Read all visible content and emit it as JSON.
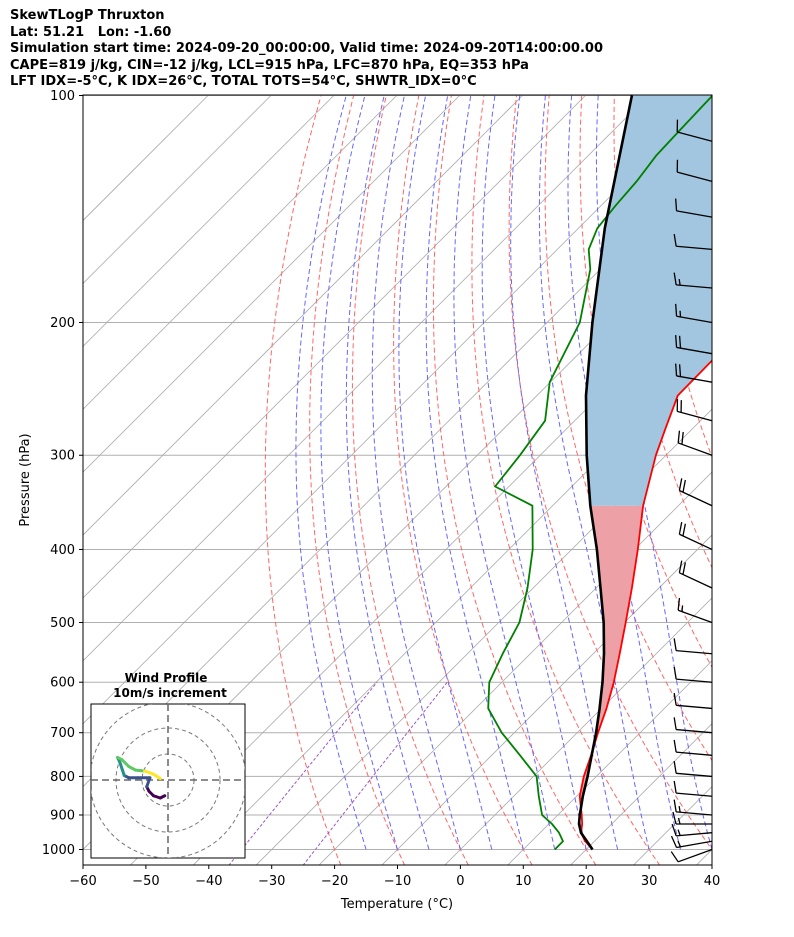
{
  "header": {
    "line1": "SkewTLogP Thruxton",
    "line2": "Lat: 51.21   Lon: -1.60",
    "line3": "Simulation start time: 2024-09-20_00:00:00, Valid time: 2024-09-20T14:00:00.00",
    "line4": "CAPE=819 j/kg, CIN=-12 j/kg, LCL=915 hPa, LFC=870 hPa, EQ=353 hPa",
    "line5": "LFT IDX=-5°C, K IDX=26°C, TOTAL TOTS=54°C, SHWTR_IDX=0°C"
  },
  "chart_data": {
    "type": "skew-t log-p",
    "xlabel": "Temperature (°C)",
    "ylabel": "Pressure (hPa)",
    "xlim": [
      -60,
      40
    ],
    "ylim_hpa": [
      1050,
      100
    ],
    "x_ticks": [
      -60,
      -50,
      -40,
      -30,
      -20,
      -10,
      0,
      10,
      20,
      30,
      40
    ],
    "y_ticks": [
      1000,
      900,
      800,
      700,
      600,
      500,
      400,
      300,
      200,
      100
    ],
    "grid": true,
    "temperature_profile": [
      {
        "p": 1000,
        "t": 21.0
      },
      {
        "p": 975,
        "t": 18.5
      },
      {
        "p": 950,
        "t": 16.5
      },
      {
        "p": 925,
        "t": 15.3
      },
      {
        "p": 900,
        "t": 13.8
      },
      {
        "p": 850,
        "t": 10.5
      },
      {
        "p": 800,
        "t": 8.0
      },
      {
        "p": 750,
        "t": 5.8
      },
      {
        "p": 700,
        "t": 3.3
      },
      {
        "p": 650,
        "t": 0.8
      },
      {
        "p": 600,
        "t": -2.2
      },
      {
        "p": 550,
        "t": -5.8
      },
      {
        "p": 500,
        "t": -9.8
      },
      {
        "p": 450,
        "t": -14.3
      },
      {
        "p": 400,
        "t": -19.5
      },
      {
        "p": 350,
        "t": -25.6
      },
      {
        "p": 300,
        "t": -31.6
      },
      {
        "p": 275,
        "t": -34.5
      },
      {
        "p": 250,
        "t": -37.6
      },
      {
        "p": 230,
        "t": -37.7
      },
      {
        "p": 200,
        "t": -37.8
      },
      {
        "p": 185,
        "t": -40.5
      },
      {
        "p": 170,
        "t": -44.0
      },
      {
        "p": 150,
        "t": -48.0
      },
      {
        "p": 140,
        "t": -51.4
      },
      {
        "p": 125,
        "t": -54.5
      },
      {
        "p": 115,
        "t": -56.4
      },
      {
        "p": 100,
        "t": -58.1
      }
    ],
    "dewpoint_profile": [
      {
        "p": 1000,
        "t": 15.0
      },
      {
        "p": 975,
        "t": 15.0
      },
      {
        "p": 950,
        "t": 13.0
      },
      {
        "p": 925,
        "t": 10.5
      },
      {
        "p": 900,
        "t": 7.5
      },
      {
        "p": 850,
        "t": 4.0
      },
      {
        "p": 800,
        "t": 0.5
      },
      {
        "p": 750,
        "t": -5.5
      },
      {
        "p": 700,
        "t": -12.0
      },
      {
        "p": 650,
        "t": -18.0
      },
      {
        "p": 600,
        "t": -22.0
      },
      {
        "p": 550,
        "t": -24.4
      },
      {
        "p": 500,
        "t": -26.7
      },
      {
        "p": 450,
        "t": -30.9
      },
      {
        "p": 400,
        "t": -36.2
      },
      {
        "p": 350,
        "t": -43.2
      },
      {
        "p": 330,
        "t": -52.2
      },
      {
        "p": 300,
        "t": -53.2
      },
      {
        "p": 270,
        "t": -54.7
      },
      {
        "p": 240,
        "t": -60.1
      },
      {
        "p": 200,
        "t": -64.8
      },
      {
        "p": 170,
        "t": -71.6
      },
      {
        "p": 160,
        "t": -75.0
      },
      {
        "p": 150,
        "t": -77.0
      },
      {
        "p": 140,
        "t": -77.7
      },
      {
        "p": 130,
        "t": -78.2
      },
      {
        "p": 120,
        "t": -79.2
      },
      {
        "p": 110,
        "t": -79.5
      },
      {
        "p": 100,
        "t": -79.8
      }
    ],
    "parcel_profile": [
      {
        "p": 1000,
        "t": 21.0
      },
      {
        "p": 975,
        "t": 18.8
      },
      {
        "p": 950,
        "t": 16.5
      },
      {
        "p": 925,
        "t": 14.8
      },
      {
        "p": 900,
        "t": 13.5
      },
      {
        "p": 850,
        "t": 11.0
      },
      {
        "p": 800,
        "t": 8.6
      },
      {
        "p": 750,
        "t": 5.9
      },
      {
        "p": 700,
        "t": 3.0
      },
      {
        "p": 650,
        "t": -0.3
      },
      {
        "p": 600,
        "t": -4.0
      },
      {
        "p": 550,
        "t": -8.3
      },
      {
        "p": 500,
        "t": -13.3
      },
      {
        "p": 450,
        "t": -19.3
      },
      {
        "p": 400,
        "t": -26.0
      },
      {
        "p": 350,
        "t": -34.0
      },
      {
        "p": 300,
        "t": -42.6
      },
      {
        "p": 250,
        "t": -52.2
      },
      {
        "p": 200,
        "t": -62.8
      },
      {
        "p": 150,
        "t": -75.8
      },
      {
        "p": 100,
        "t": -92.6
      }
    ],
    "shading": [
      {
        "kind": "CAPE",
        "color": "#a2c6df"
      },
      {
        "kind": "positive-lower",
        "color": "#eda1a6"
      }
    ],
    "colors": {
      "temperature": "#ff0000",
      "dewpoint": "#008000",
      "parcel": "#000000",
      "dry_adiabats": "#ff6666",
      "moist_adiabats": "#6666ff",
      "mixing_ratio": "#9a56c8",
      "isotherms": "#aaaaaa",
      "isobars": "#b0b0b0"
    },
    "wind_barbs": [
      {
        "p": 1000,
        "dir": 250,
        "speed_kt": 10
      },
      {
        "p": 975,
        "dir": 260,
        "speed_kt": 15
      },
      {
        "p": 950,
        "dir": 265,
        "speed_kt": 15
      },
      {
        "p": 925,
        "dir": 270,
        "speed_kt": 15
      },
      {
        "p": 900,
        "dir": 275,
        "speed_kt": 15
      },
      {
        "p": 850,
        "dir": 275,
        "speed_kt": 10
      },
      {
        "p": 800,
        "dir": 275,
        "speed_kt": 10
      },
      {
        "p": 750,
        "dir": 275,
        "speed_kt": 10
      },
      {
        "p": 700,
        "dir": 275,
        "speed_kt": 10
      },
      {
        "p": 650,
        "dir": 275,
        "speed_kt": 10
      },
      {
        "p": 600,
        "dir": 275,
        "speed_kt": 10
      },
      {
        "p": 550,
        "dir": 275,
        "speed_kt": 10
      },
      {
        "p": 500,
        "dir": 290,
        "speed_kt": 15
      },
      {
        "p": 450,
        "dir": 295,
        "speed_kt": 20
      },
      {
        "p": 400,
        "dir": 295,
        "speed_kt": 20
      },
      {
        "p": 350,
        "dir": 295,
        "speed_kt": 20
      },
      {
        "p": 300,
        "dir": 290,
        "speed_kt": 20
      },
      {
        "p": 270,
        "dir": 285,
        "speed_kt": 20
      },
      {
        "p": 240,
        "dir": 280,
        "speed_kt": 20
      },
      {
        "p": 220,
        "dir": 280,
        "speed_kt": 20
      },
      {
        "p": 200,
        "dir": 280,
        "speed_kt": 15
      },
      {
        "p": 180,
        "dir": 275,
        "speed_kt": 15
      },
      {
        "p": 160,
        "dir": 275,
        "speed_kt": 10
      },
      {
        "p": 145,
        "dir": 280,
        "speed_kt": 10
      },
      {
        "p": 130,
        "dir": 285,
        "speed_kt": 10
      },
      {
        "p": 115,
        "dir": 285,
        "speed_kt": 10
      }
    ],
    "inset": {
      "title": "Wind Profile",
      "subtitle": "10m/s increment",
      "hodograph_uv": [
        [
          1.5,
          -3.5
        ],
        [
          0.5,
          -4.0
        ],
        [
          -1.0,
          -3.5
        ],
        [
          -2.0,
          -2.5
        ],
        [
          -2.5,
          -1.5
        ],
        [
          -1.8,
          0.5
        ],
        [
          -4.5,
          0.5
        ],
        [
          -6.5,
          0.5
        ],
        [
          -7.5,
          1.0
        ],
        [
          -8.0,
          2.5
        ],
        [
          -8.5,
          4.0
        ],
        [
          -9.0,
          5.0
        ],
        [
          -8.0,
          4.5
        ],
        [
          -6.5,
          3.0
        ],
        [
          -5.0,
          2.2
        ],
        [
          -3.0,
          2.0
        ],
        [
          -1.5,
          1.5
        ],
        [
          -0.5,
          1.0
        ],
        [
          0.5,
          0.3
        ]
      ]
    }
  }
}
